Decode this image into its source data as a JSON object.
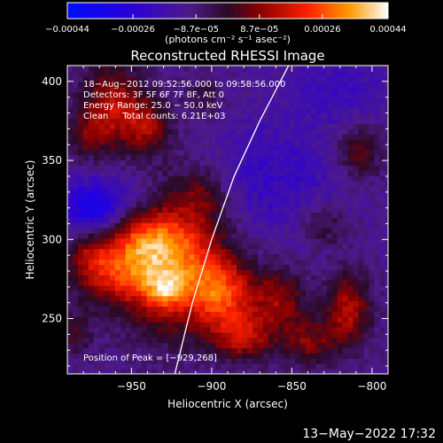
{
  "chart_data": {
    "type": "heatmap",
    "title": "Reconstructed RHESSI Image",
    "xlabel": "Heliocentric X (arcsec)",
    "ylabel": "Heliocentric Y (arcsec)",
    "xlim": [
      -990,
      -790
    ],
    "ylim": [
      215,
      410
    ],
    "x_ticks": [
      -950,
      -900,
      -850,
      -800
    ],
    "x_tick_labels": [
      "−950",
      "−900",
      "−850",
      "−800"
    ],
    "y_ticks": [
      250,
      300,
      350,
      400
    ],
    "y_tick_labels": [
      "250",
      "300",
      "350",
      "400"
    ],
    "colorbar": {
      "range": [
        -0.00044,
        0.00044
      ],
      "ticks": [
        -0.00044,
        -0.00026,
        -8.7e-05,
        8.7e-05,
        0.00026,
        0.00044
      ],
      "tick_labels": [
        "−0.00044",
        "−0.00026",
        "−8.7e−05",
        "8.7e−05",
        "0.00026",
        "0.00044"
      ],
      "unit_label": "(photons cm⁻² s⁻¹ asec⁻²)"
    },
    "annotations": [
      "18−Aug−2012 09:52:56.000 to 09:58:56.000",
      "Detectors: 3F 5F 6F 7F 8F, Att 0",
      "Energy Range: 25.0 − 50.0 keV",
      "Clean     Total counts: 6.21E+03"
    ],
    "peak_label": "Position of Peak = [−929,268]",
    "peak": {
      "x": -929,
      "y": 268
    },
    "limb_curve": [
      [
        -923,
        215
      ],
      [
        -912,
        260
      ],
      [
        -900,
        300
      ],
      [
        -886,
        340
      ],
      [
        -870,
        375
      ],
      [
        -852,
        410
      ]
    ],
    "blobs": [
      {
        "x": -925,
        "y": 290,
        "sx": 22,
        "sy": 30,
        "amp": 0.0004
      },
      {
        "x": -929,
        "y": 268,
        "sx": 8,
        "sy": 8,
        "amp": 0.00018
      },
      {
        "x": -960,
        "y": 278,
        "sx": 18,
        "sy": 14,
        "amp": 0.00022
      },
      {
        "x": -945,
        "y": 300,
        "sx": 14,
        "sy": 12,
        "amp": 0.00015
      },
      {
        "x": -975,
        "y": 290,
        "sx": 10,
        "sy": 10,
        "amp": 0.00014
      },
      {
        "x": -962,
        "y": 385,
        "sx": 14,
        "sy": 18,
        "amp": 0.00024
      },
      {
        "x": -940,
        "y": 372,
        "sx": 10,
        "sy": 12,
        "amp": 0.00018
      },
      {
        "x": -978,
        "y": 365,
        "sx": 10,
        "sy": 10,
        "amp": 0.00012
      },
      {
        "x": -893,
        "y": 265,
        "sx": 14,
        "sy": 16,
        "amp": 0.0003
      },
      {
        "x": -880,
        "y": 238,
        "sx": 12,
        "sy": 10,
        "amp": 0.00022
      },
      {
        "x": -858,
        "y": 262,
        "sx": 12,
        "sy": 14,
        "amp": 0.0002
      },
      {
        "x": -840,
        "y": 235,
        "sx": 12,
        "sy": 10,
        "amp": 0.00018
      },
      {
        "x": -815,
        "y": 256,
        "sx": 10,
        "sy": 16,
        "amp": 0.00024
      },
      {
        "x": -808,
        "y": 355,
        "sx": 10,
        "sy": 12,
        "amp": 0.00016
      },
      {
        "x": -830,
        "y": 310,
        "sx": 10,
        "sy": 10,
        "amp": 0.00012
      },
      {
        "x": -905,
        "y": 330,
        "sx": 10,
        "sy": 10,
        "amp": 0.0001
      },
      {
        "x": -985,
        "y": 240,
        "sx": 8,
        "sy": 10,
        "amp": 0.00012
      },
      {
        "x": -905,
        "y": 390,
        "sx": 8,
        "sy": 8,
        "amp": 0.0001
      },
      {
        "x": -955,
        "y": 325,
        "sx": 26,
        "sy": 14,
        "amp": -0.00012
      },
      {
        "x": -860,
        "y": 340,
        "sx": 30,
        "sy": 26,
        "amp": -0.0001
      },
      {
        "x": -820,
        "y": 395,
        "sx": 24,
        "sy": 14,
        "amp": -8e-05
      },
      {
        "x": -975,
        "y": 320,
        "sx": 12,
        "sy": 10,
        "amp": -0.00016
      }
    ],
    "grid": false
  },
  "timestamp": "13−May−2022 17:32",
  "colors": {
    "background": "#000000",
    "text": "#ffffff",
    "limb_line": "#ffffff"
  }
}
